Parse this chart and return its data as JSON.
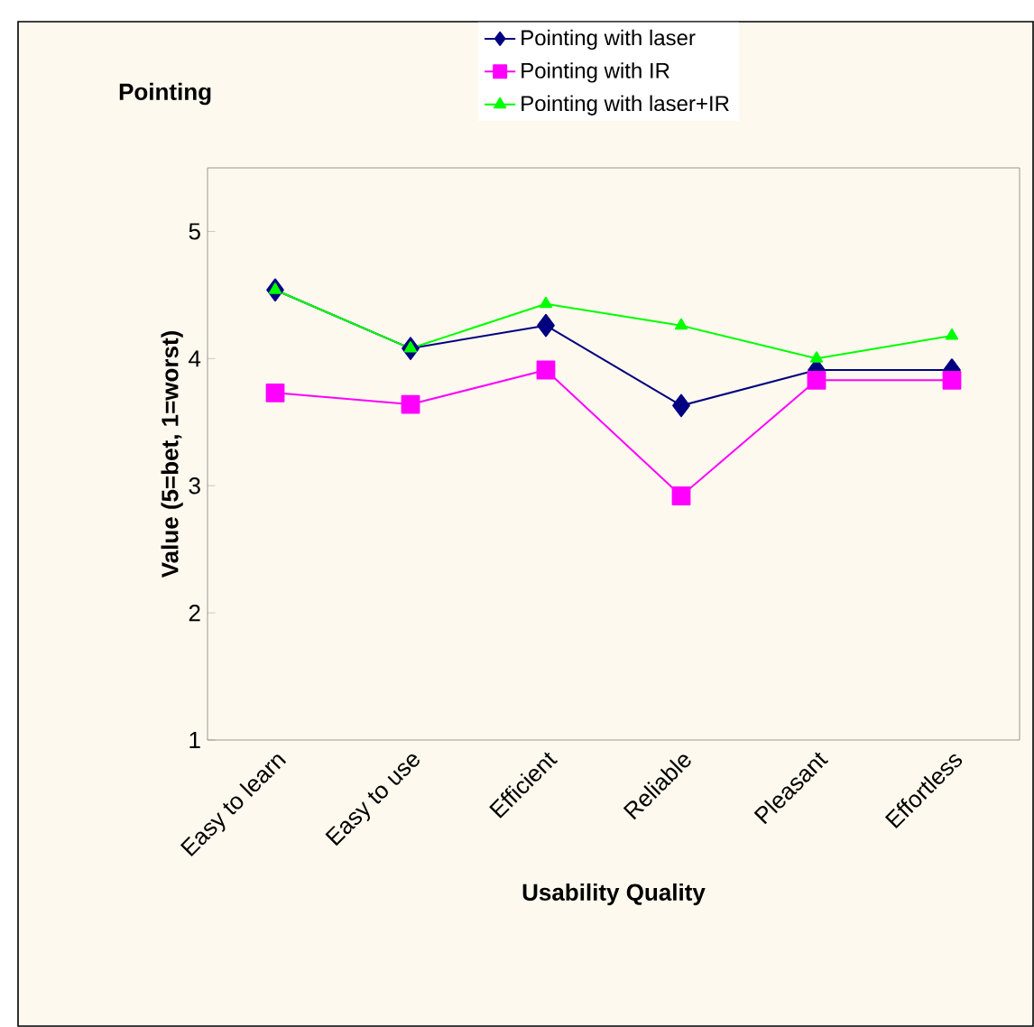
{
  "chart_data": {
    "type": "line",
    "title": "Pointing",
    "xlabel": "Usability Quality",
    "ylabel": "Value (5=bet, 1=worst)",
    "categories": [
      "Easy to learn",
      "Easy to use",
      "Efficient",
      "Reliable",
      "Pleasant",
      "Effortless"
    ],
    "series": [
      {
        "name": "Pointing with laser",
        "color": "#000080",
        "marker": "diamond",
        "values": [
          4.54,
          4.08,
          4.26,
          3.63,
          3.91,
          3.91
        ]
      },
      {
        "name": "Pointing with IR",
        "color": "#ff00ff",
        "marker": "square",
        "values": [
          3.73,
          3.64,
          3.91,
          2.92,
          3.83,
          3.83
        ]
      },
      {
        "name": "Pointing with laser+IR",
        "color": "#00ff00",
        "marker": "triangle",
        "values": [
          4.54,
          4.08,
          4.43,
          4.26,
          4.0,
          4.18
        ]
      }
    ],
    "ylim": [
      1,
      5.5
    ],
    "yticks": [
      1,
      2,
      3,
      4,
      5
    ],
    "grid": false,
    "legend": "top",
    "line_style": "solid"
  }
}
